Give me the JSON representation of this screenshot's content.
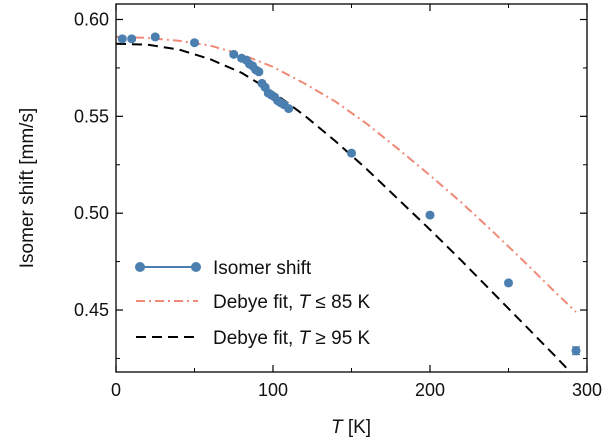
{
  "chart_data": {
    "type": "scatter",
    "xlabel": "T [K]",
    "ylabel": "Isomer shift [mm/s]",
    "xlim": [
      0,
      300
    ],
    "ylim": [
      0.418,
      0.608
    ],
    "x_ticks": [
      0,
      100,
      200,
      300
    ],
    "x_minor_ticks": [
      50,
      150,
      250
    ],
    "y_ticks": [
      0.45,
      0.5,
      0.55,
      0.6
    ],
    "y_tick_labels": [
      "0.45",
      "0.50",
      "0.55",
      "0.60"
    ],
    "y_minor_ticks": [
      0.425,
      0.475,
      0.525,
      0.575
    ],
    "grid": false,
    "legend_position": "bottom-left",
    "legend": [
      {
        "label": "Isomer shift",
        "style": "marker-line"
      },
      {
        "label": "Debye fit, T ≤ 85 K",
        "label_parts": [
          "Debye fit, ",
          "T",
          " ≤ 85 K"
        ],
        "style": "dash-dot"
      },
      {
        "label": "Debye fit, T ≥ 95 K",
        "label_parts": [
          "Debye fit, ",
          "T",
          " ≥ 95 K"
        ],
        "style": "dashed"
      }
    ],
    "series": [
      {
        "name": "Isomer shift",
        "kind": "scatter",
        "color": "#4a7fb0",
        "points": [
          {
            "x": 4,
            "y": 0.59,
            "err": 0.001
          },
          {
            "x": 10,
            "y": 0.59,
            "err": 0.001
          },
          {
            "x": 25,
            "y": 0.591,
            "err": 0.001
          },
          {
            "x": 50,
            "y": 0.588,
            "err": 0.001
          },
          {
            "x": 75,
            "y": 0.582,
            "err": 0.001
          },
          {
            "x": 80,
            "y": 0.58,
            "err": 0.001
          },
          {
            "x": 83,
            "y": 0.579,
            "err": 0.001
          },
          {
            "x": 85,
            "y": 0.577,
            "err": 0.001
          },
          {
            "x": 87,
            "y": 0.576,
            "err": 0.001
          },
          {
            "x": 89,
            "y": 0.574,
            "err": 0.001
          },
          {
            "x": 91,
            "y": 0.573,
            "err": 0.001
          },
          {
            "x": 93,
            "y": 0.567,
            "err": 0.001
          },
          {
            "x": 95,
            "y": 0.565,
            "err": 0.001
          },
          {
            "x": 97,
            "y": 0.562,
            "err": 0.001
          },
          {
            "x": 99,
            "y": 0.561,
            "err": 0.001
          },
          {
            "x": 101,
            "y": 0.56,
            "err": 0.001
          },
          {
            "x": 103,
            "y": 0.558,
            "err": 0.001
          },
          {
            "x": 105,
            "y": 0.557,
            "err": 0.001
          },
          {
            "x": 107,
            "y": 0.556,
            "err": 0.001
          },
          {
            "x": 110,
            "y": 0.554,
            "err": 0.001
          },
          {
            "x": 150,
            "y": 0.531,
            "err": 0.001
          },
          {
            "x": 200,
            "y": 0.499,
            "err": 0.001
          },
          {
            "x": 250,
            "y": 0.464,
            "err": 0.001
          },
          {
            "x": 293,
            "y": 0.429,
            "err": 0.002
          }
        ]
      },
      {
        "name": "Debye fit, T ≤ 85 K",
        "kind": "line",
        "color": "#f08a78",
        "dash": "dash-dot",
        "points": [
          {
            "x": 0,
            "y": 0.591
          },
          {
            "x": 20,
            "y": 0.5905
          },
          {
            "x": 40,
            "y": 0.589
          },
          {
            "x": 60,
            "y": 0.5865
          },
          {
            "x": 80,
            "y": 0.582
          },
          {
            "x": 100,
            "y": 0.5755
          },
          {
            "x": 120,
            "y": 0.567
          },
          {
            "x": 140,
            "y": 0.5575
          },
          {
            "x": 160,
            "y": 0.546
          },
          {
            "x": 180,
            "y": 0.533
          },
          {
            "x": 200,
            "y": 0.5195
          },
          {
            "x": 220,
            "y": 0.5055
          },
          {
            "x": 240,
            "y": 0.4905
          },
          {
            "x": 260,
            "y": 0.475
          },
          {
            "x": 280,
            "y": 0.459
          },
          {
            "x": 293,
            "y": 0.449
          }
        ]
      },
      {
        "name": "Debye fit, T ≥ 95 K",
        "kind": "line",
        "color": "#000000",
        "dash": "dashed",
        "points": [
          {
            "x": 0,
            "y": 0.5875
          },
          {
            "x": 20,
            "y": 0.587
          },
          {
            "x": 40,
            "y": 0.5845
          },
          {
            "x": 60,
            "y": 0.5795
          },
          {
            "x": 80,
            "y": 0.5725
          },
          {
            "x": 100,
            "y": 0.5625
          },
          {
            "x": 120,
            "y": 0.5505
          },
          {
            "x": 140,
            "y": 0.537
          },
          {
            "x": 160,
            "y": 0.5225
          },
          {
            "x": 180,
            "y": 0.507
          },
          {
            "x": 200,
            "y": 0.4915
          },
          {
            "x": 220,
            "y": 0.4755
          },
          {
            "x": 240,
            "y": 0.459
          },
          {
            "x": 260,
            "y": 0.4425
          },
          {
            "x": 280,
            "y": 0.426
          },
          {
            "x": 290,
            "y": 0.4175
          }
        ]
      }
    ]
  }
}
